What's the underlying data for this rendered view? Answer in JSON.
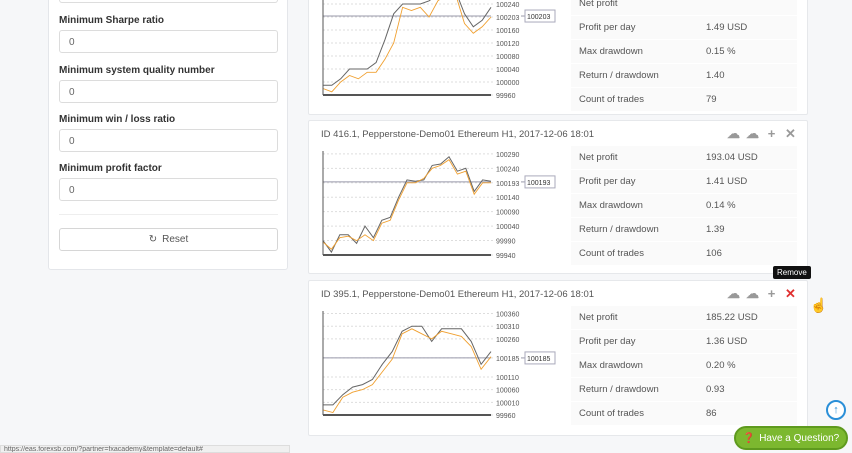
{
  "filters": [
    {
      "label": "Minimum Sharpe ratio",
      "value": "0"
    },
    {
      "label": "Minimum system quality number",
      "value": "0"
    },
    {
      "label": "Minimum win / loss ratio",
      "value": "0"
    },
    {
      "label": "Minimum profit factor",
      "value": "0"
    }
  ],
  "reset_label": "Reset",
  "stat_labels": [
    "Net profit",
    "Profit per day",
    "Max drawdown",
    "Return / drawdown",
    "Count of trades"
  ],
  "cards": [
    {
      "title": "",
      "stats": [
        "",
        "1.49 USD",
        "0.15 %",
        "1.40",
        "79"
      ]
    },
    {
      "title": "ID 416.1, Pepperstone-Demo01 Ethereum H1, 2017-12-06 18:01",
      "stats": [
        "193.04 USD",
        "1.41 USD",
        "0.14 %",
        "1.39",
        "106"
      ]
    },
    {
      "title": "ID 395.1, Pepperstone-Demo01 Ethereum H1, 2017-12-06 18:01",
      "stats": [
        "185.22 USD",
        "1.36 USD",
        "0.20 %",
        "0.93",
        "86"
      ]
    }
  ],
  "tooltip": "Remove",
  "status_url": "https://eas.forexsb.com/?partner=fxacademy&template=default#",
  "help_button": "Have a Question?",
  "colors": {
    "balance": "#666666",
    "equity": "#f0a030",
    "accent": "#7cb82f",
    "remove": "#e03030"
  },
  "chart_data": [
    {
      "type": "line",
      "ylim": [
        99960,
        100280
      ],
      "ticks": [
        "100240",
        "100203",
        "100160",
        "100120",
        "100080",
        "100040",
        "100000",
        "99960"
      ],
      "tick_values": [
        100240,
        100200,
        100160,
        100120,
        100080,
        100040,
        100000,
        99960
      ],
      "current": 100203,
      "current_label": "100203",
      "balance": [
        99990,
        99990,
        100010,
        100040,
        100040,
        100040,
        100060,
        100130,
        100210,
        100240,
        100240,
        100240,
        100250,
        100270,
        100280,
        100280,
        100210,
        100170,
        100190,
        100230
      ],
      "equity": [
        99980,
        99970,
        100000,
        100020,
        100010,
        100030,
        100030,
        100070,
        100120,
        100230,
        100220,
        100230,
        100200,
        100250,
        100270,
        100270,
        100180,
        100150,
        100170,
        100200
      ]
    },
    {
      "type": "line",
      "ylim": [
        99940,
        100300
      ],
      "ticks": [
        "100290",
        "100240",
        "100193",
        "100140",
        "100090",
        "100040",
        "99990",
        "99940"
      ],
      "tick_values": [
        100290,
        100240,
        100190,
        100140,
        100090,
        100040,
        99990,
        99940
      ],
      "current": 100193,
      "current_label": "100193",
      "balance": [
        99990,
        99950,
        100010,
        100010,
        99980,
        100040,
        100000,
        100060,
        100070,
        100140,
        100200,
        100195,
        100200,
        100250,
        100255,
        100280,
        100230,
        100240,
        100160,
        100200,
        100195
      ],
      "equity": [
        99985,
        99960,
        100000,
        100005,
        99990,
        100010,
        99990,
        100050,
        100060,
        100130,
        100190,
        100190,
        100205,
        100240,
        100250,
        100270,
        100220,
        100230,
        100150,
        100190,
        100190
      ]
    },
    {
      "type": "line",
      "ylim": [
        99960,
        100370
      ],
      "ticks": [
        "100360",
        "100310",
        "100260",
        "100185",
        "100110",
        "100060",
        "100010",
        "99960"
      ],
      "tick_values": [
        100360,
        100310,
        100260,
        100185,
        100110,
        100060,
        100010,
        99960
      ],
      "current": 100185,
      "current_label": "100185",
      "balance": [
        100000,
        100000,
        100040,
        100070,
        100080,
        100100,
        100160,
        100210,
        100290,
        100310,
        100310,
        100250,
        100300,
        100300,
        100300,
        100250,
        100160,
        100210
      ],
      "equity": [
        99980,
        99970,
        100030,
        100050,
        100060,
        100080,
        100130,
        100180,
        100280,
        100300,
        100280,
        100260,
        100290,
        100280,
        100270,
        100230,
        100140,
        100190
      ]
    }
  ]
}
